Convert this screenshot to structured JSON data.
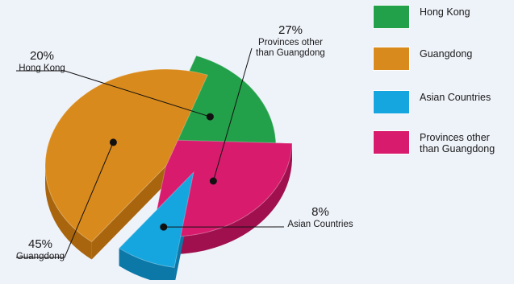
{
  "chart_data": {
    "type": "pie",
    "title": "",
    "slices": [
      {
        "label": "Hong Kong",
        "value": 20,
        "percent_label": "20%",
        "callout_label": "Hong Kong",
        "color": "#22a14a",
        "side_color": "#167a35"
      },
      {
        "label": "Provinces other\nthan Guangdong",
        "value": 27,
        "percent_label": "27%",
        "callout_label": "Provinces other\nthan Guangdong",
        "color": "#d81b6d",
        "side_color": "#a0104e"
      },
      {
        "label": "Asian Countries",
        "value": 8,
        "percent_label": "8%",
        "callout_label": "Asian Countries",
        "color": "#15a6df",
        "side_color": "#0b78a8"
      },
      {
        "label": "Guangdong",
        "value": 45,
        "percent_label": "45%",
        "callout_label": "Guangdong",
        "color": "#d98a1c",
        "side_color": "#a9650d"
      }
    ],
    "legend": {
      "position": "right",
      "entries": [
        {
          "label": "Hong Kong",
          "color": "#22a14a"
        },
        {
          "label": "Guangdong",
          "color": "#d98a1c"
        },
        {
          "label": "Asian Countries",
          "color": "#15a6df"
        },
        {
          "label": "Provinces other\nthan Guangdong",
          "color": "#d81b6d"
        }
      ]
    }
  }
}
